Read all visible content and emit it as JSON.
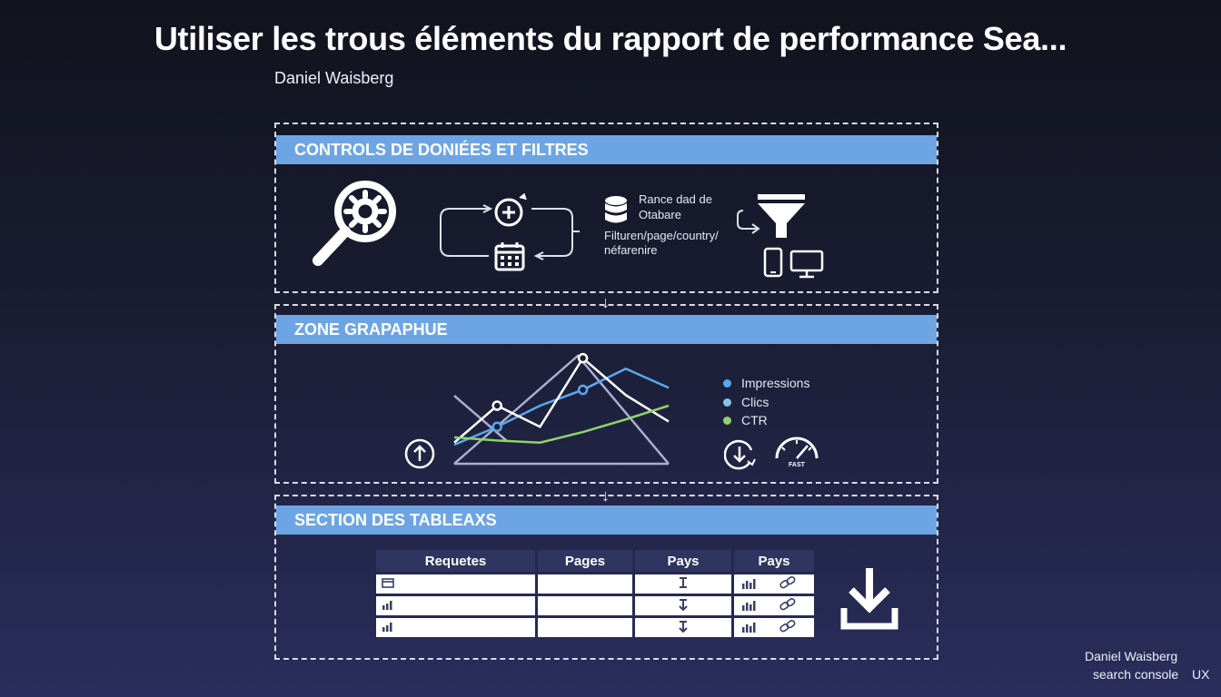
{
  "title": "Utiliser les trous éléments du rapport de performance Sea...",
  "author": "Daniel Waisberg",
  "sections": {
    "controls": {
      "header": "CONTROLS DE DONIÉES ET FILTRES",
      "db_text_1": "Rance dad de",
      "db_text_2": "Otabare",
      "filter_text_1": "Filturen/page/country/",
      "filter_text_2": "néfarenire"
    },
    "graph": {
      "header": "ZONE GRAPAPHUE",
      "legend": [
        {
          "label": "Impressions",
          "color": "#5aa8ee"
        },
        {
          "label": "Clics",
          "color": "#86c3ea"
        },
        {
          "label": "CTR",
          "color": "#8fd36a"
        }
      ],
      "gauge_label": "FAST"
    },
    "tables": {
      "header": "SECTION DES TABLEAXS",
      "columns": [
        "Requetes",
        "Pages",
        "Pays",
        "Pays"
      ]
    }
  },
  "chart_data": {
    "type": "line",
    "title": "",
    "xlabel": "",
    "ylabel": "",
    "x": [
      1,
      2,
      3,
      4,
      5,
      6
    ],
    "series": [
      {
        "name": "Impressions",
        "values": [
          18,
          35,
          55,
          70,
          90,
          72
        ]
      },
      {
        "name": "Clics",
        "values": [
          20,
          55,
          35,
          100,
          65,
          40
        ]
      },
      {
        "name": "CTR",
        "values": [
          25,
          22,
          20,
          30,
          42,
          55
        ]
      }
    ],
    "ylim": [
      0,
      110
    ],
    "grid": false,
    "legend": "right"
  },
  "footer": {
    "name": "Daniel Waisberg",
    "line2": "search console",
    "line3": "UX"
  }
}
